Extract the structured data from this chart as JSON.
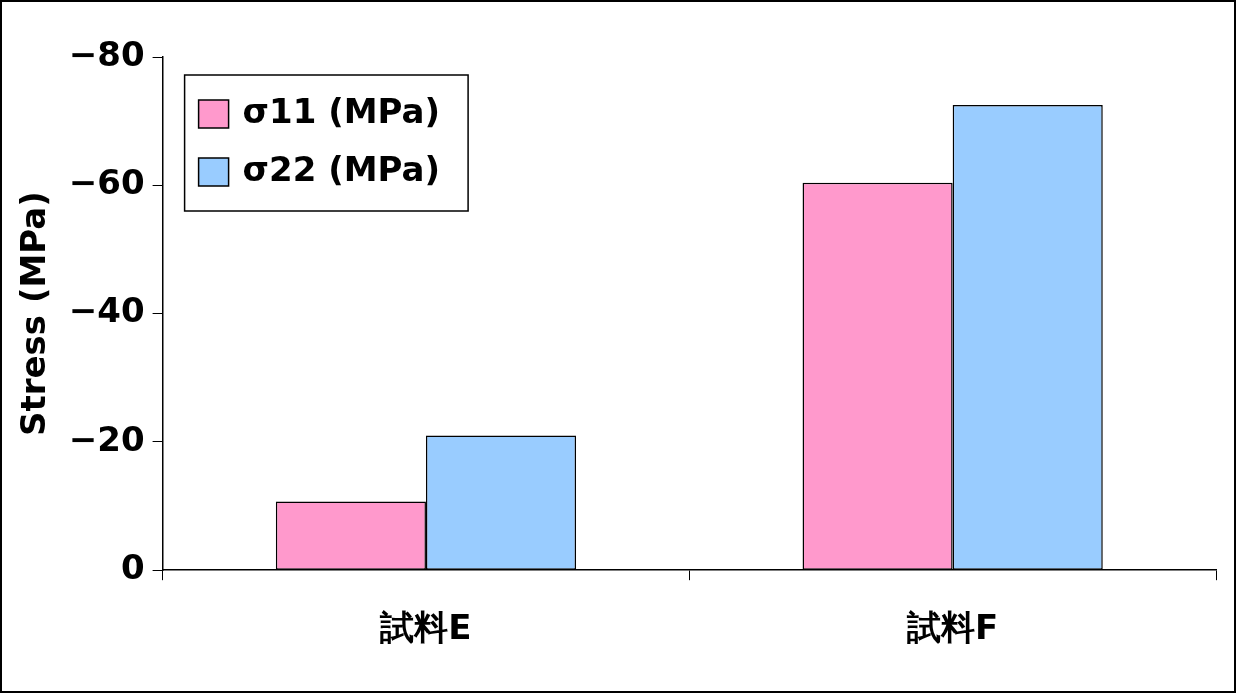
{
  "chart_data": {
    "type": "bar",
    "ylabel": "Stress (MPa)",
    "categories": [
      "試料E",
      "試料F"
    ],
    "series": [
      {
        "name": "σ11 (MPa)",
        "color": "#ff99cc",
        "values": [
          -10.7,
          -60.4
        ]
      },
      {
        "name": "σ22 (MPa)",
        "color": "#99ccff",
        "values": [
          -21,
          -72.5
        ]
      }
    ],
    "ylim": [
      0,
      -80
    ],
    "yticks": [
      0,
      -20,
      -40,
      -60,
      -80
    ],
    "grid": false,
    "legend": "top left"
  }
}
